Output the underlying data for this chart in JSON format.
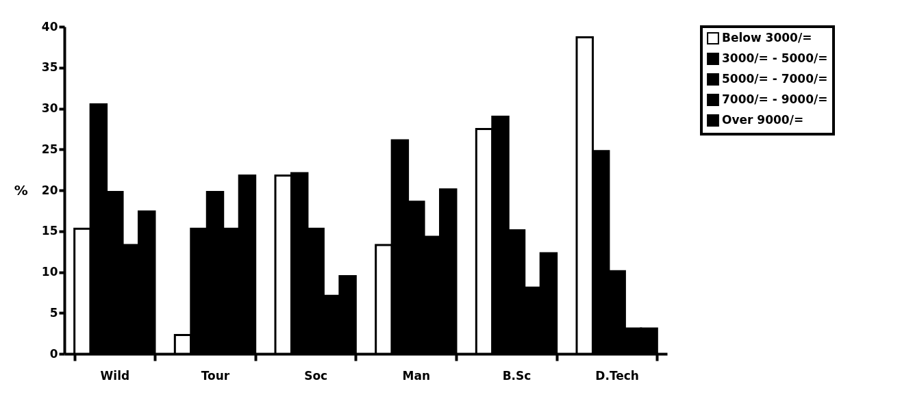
{
  "chart_data": {
    "type": "bar",
    "ylabel": "%",
    "categories": [
      "Wild",
      "Tour",
      "Soc",
      "Man",
      "B.Sc",
      "D.Tech"
    ],
    "series": [
      {
        "name": "Below 3000/=",
        "color": "#ffffff",
        "values": [
          15.3,
          2.3,
          21.8,
          13.3,
          27.5,
          38.7
        ]
      },
      {
        "name": "3000/= - 5000/=",
        "color": "#000000",
        "values": [
          30.5,
          15.3,
          22.1,
          26.1,
          29.0,
          24.8
        ]
      },
      {
        "name": "5000/= - 7000/=",
        "color": "#000000",
        "values": [
          19.8,
          19.8,
          15.3,
          18.6,
          15.1,
          10.1
        ]
      },
      {
        "name": "7000/= - 9000/=",
        "color": "#000000",
        "values": [
          13.3,
          15.3,
          7.1,
          14.3,
          8.1,
          3.1
        ]
      },
      {
        "name": "Over 9000/=",
        "color": "#000000",
        "values": [
          17.4,
          21.8,
          9.5,
          20.1,
          12.3,
          3.1
        ]
      }
    ],
    "ylim": [
      0,
      40
    ],
    "yticks": [
      0,
      5,
      10,
      15,
      20,
      25,
      30,
      35,
      40
    ],
    "grid": false,
    "legend": "right"
  }
}
